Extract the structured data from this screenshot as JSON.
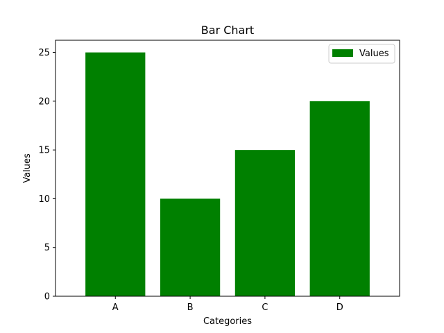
{
  "chart_data": {
    "type": "bar",
    "title": "Bar Chart",
    "xlabel": "Categories",
    "ylabel": "Values",
    "categories": [
      "A",
      "B",
      "C",
      "D"
    ],
    "series": [
      {
        "name": "Values",
        "values": [
          25,
          10,
          15,
          20
        ],
        "color": "#008000"
      }
    ],
    "ylim": [
      0,
      26.25
    ],
    "yticks": [
      0,
      5,
      10,
      15,
      20,
      25
    ],
    "legend": {
      "position": "top-right"
    },
    "grid": false
  }
}
